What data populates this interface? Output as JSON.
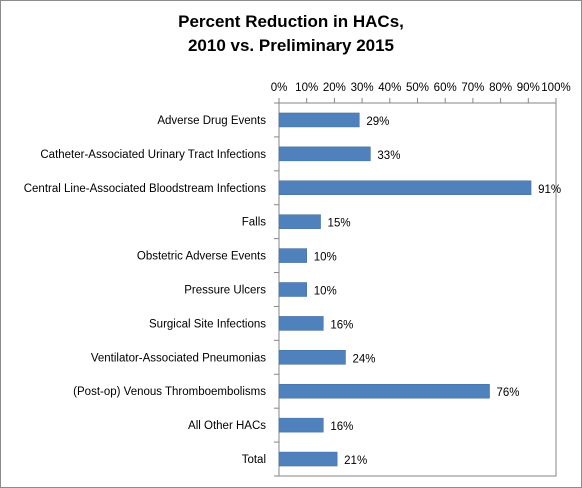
{
  "chart_data": {
    "type": "bar",
    "orientation": "horizontal",
    "title_line1": "Percent Reduction in HACs,",
    "title_line2": "2010 vs. Preliminary 2015",
    "categories": [
      "Adverse Drug Events",
      "Catheter-Associated Urinary Tract Infections",
      "Central Line-Associated Bloodstream Infections",
      "Falls",
      "Obstetric Adverse Events",
      "Pressure Ulcers",
      "Surgical Site Infections",
      "Ventilator-Associated Pneumonias",
      "(Post-op) Venous Thromboembolisms",
      "All Other HACs",
      "Total"
    ],
    "values": [
      29,
      33,
      91,
      15,
      10,
      10,
      16,
      24,
      76,
      16,
      21
    ],
    "value_labels": [
      "29%",
      "33%",
      "91%",
      "15%",
      "10%",
      "10%",
      "16%",
      "24%",
      "76%",
      "16%",
      "21%"
    ],
    "xlim": [
      0,
      100
    ],
    "xticks": [
      0,
      10,
      20,
      30,
      40,
      50,
      60,
      70,
      80,
      90,
      100
    ],
    "xtick_labels": [
      "0%",
      "10%",
      "20%",
      "30%",
      "40%",
      "50%",
      "60%",
      "70%",
      "80%",
      "90%",
      "100%"
    ],
    "x_axis_position": "top",
    "grid": false,
    "legend": "none",
    "bar_color": "#4f81bd"
  }
}
